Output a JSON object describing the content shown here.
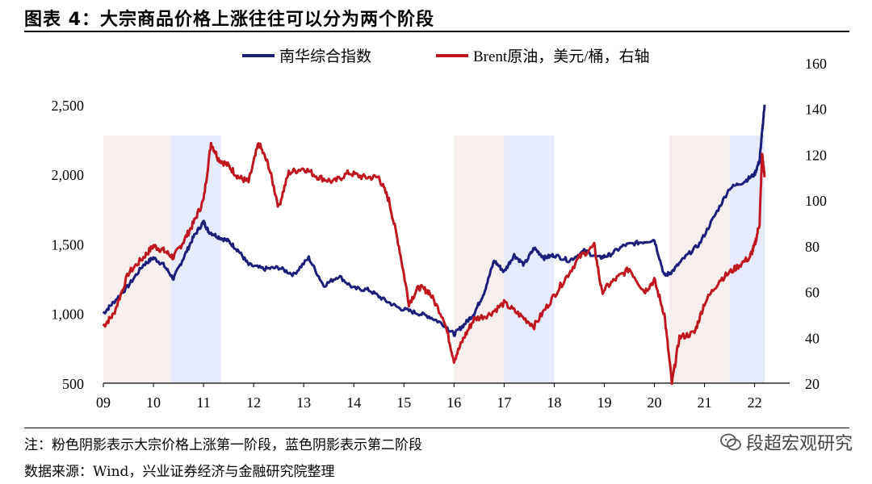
{
  "title": "图表 4：大宗商品价格上涨往往可以分为两个阶段",
  "note": "注：粉色阴影表示大宗价格上涨第一阶段，蓝色阴影表示第二阶段",
  "source": "数据来源：Wind，兴业证券经济与金融研究院整理",
  "watermark": "段超宏观研究",
  "colors": {
    "navy": "#1b1f7a",
    "red": "#c0161f",
    "pink_shade": "#f7eeee",
    "blue_shade": "#e6ebfb"
  },
  "chart_data": {
    "type": "line",
    "x_ticks": [
      "09",
      "10",
      "11",
      "12",
      "13",
      "14",
      "15",
      "16",
      "17",
      "18",
      "19",
      "20",
      "21",
      "22"
    ],
    "x_range": [
      2009.0,
      2022.7
    ],
    "left_axis": {
      "ticks": [
        "500",
        "1,000",
        "1,500",
        "2,000",
        "2,500"
      ],
      "range": [
        500,
        2800
      ]
    },
    "right_axis": {
      "ticks": [
        "20",
        "40",
        "60",
        "80",
        "100",
        "120",
        "140",
        "160"
      ],
      "range": [
        20,
        160
      ]
    },
    "shading": [
      {
        "phase": "first",
        "start": 2009.0,
        "end": 2010.35
      },
      {
        "phase": "second",
        "start": 2010.35,
        "end": 2011.35
      },
      {
        "phase": "first",
        "start": 2016.0,
        "end": 2017.0
      },
      {
        "phase": "second",
        "start": 2017.0,
        "end": 2018.0
      },
      {
        "phase": "first",
        "start": 2020.3,
        "end": 2021.5
      },
      {
        "phase": "second",
        "start": 2021.5,
        "end": 2022.2
      }
    ],
    "series": [
      {
        "name": "南华综合指数",
        "axis": "left",
        "x": [
          2009.0,
          2009.2,
          2009.5,
          2009.8,
          2010.0,
          2010.2,
          2010.4,
          2010.6,
          2010.8,
          2011.0,
          2011.1,
          2011.3,
          2011.5,
          2011.7,
          2011.9,
          2012.2,
          2012.5,
          2012.8,
          2013.1,
          2013.4,
          2013.7,
          2014.0,
          2014.3,
          2014.6,
          2014.9,
          2015.2,
          2015.5,
          2015.8,
          2016.0,
          2016.2,
          2016.4,
          2016.6,
          2016.8,
          2017.0,
          2017.2,
          2017.4,
          2017.6,
          2017.8,
          2018.0,
          2018.3,
          2018.6,
          2018.9,
          2019.1,
          2019.4,
          2019.7,
          2020.0,
          2020.2,
          2020.35,
          2020.6,
          2020.9,
          2021.2,
          2021.5,
          2021.8,
          2022.0,
          2022.1,
          2022.15,
          2022.2
        ],
        "y": [
          1000,
          1080,
          1200,
          1350,
          1400,
          1350,
          1250,
          1400,
          1550,
          1660,
          1590,
          1550,
          1520,
          1450,
          1350,
          1320,
          1330,
          1280,
          1400,
          1200,
          1270,
          1180,
          1170,
          1100,
          1040,
          1010,
          980,
          920,
          850,
          920,
          1000,
          1150,
          1380,
          1300,
          1420,
          1350,
          1470,
          1400,
          1420,
          1380,
          1450,
          1400,
          1420,
          1490,
          1510,
          1530,
          1270,
          1300,
          1400,
          1500,
          1700,
          1900,
          1950,
          2000,
          2100,
          2300,
          2500
        ]
      },
      {
        "name": "Brent原油，美元/桶，右轴",
        "axis": "right",
        "x": [
          2009.0,
          2009.2,
          2009.5,
          2009.8,
          2010.0,
          2010.2,
          2010.4,
          2010.6,
          2010.8,
          2011.0,
          2011.15,
          2011.3,
          2011.5,
          2011.7,
          2011.9,
          2012.1,
          2012.3,
          2012.5,
          2012.7,
          2013.0,
          2013.3,
          2013.6,
          2013.9,
          2014.2,
          2014.5,
          2014.7,
          2014.9,
          2015.1,
          2015.3,
          2015.5,
          2015.8,
          2016.0,
          2016.2,
          2016.4,
          2016.7,
          2017.0,
          2017.3,
          2017.6,
          2017.9,
          2018.2,
          2018.5,
          2018.8,
          2018.95,
          2019.2,
          2019.5,
          2019.8,
          2020.0,
          2020.2,
          2020.35,
          2020.5,
          2020.8,
          2021.0,
          2021.3,
          2021.6,
          2021.9,
          2022.0,
          2022.1,
          2022.15,
          2022.2
        ],
        "y": [
          45,
          50,
          68,
          75,
          80,
          78,
          75,
          82,
          90,
          100,
          125,
          118,
          115,
          110,
          108,
          125,
          115,
          97,
          112,
          114,
          110,
          108,
          112,
          110,
          110,
          100,
          80,
          55,
          62,
          60,
          48,
          30,
          40,
          48,
          50,
          55,
          50,
          45,
          55,
          65,
          75,
          80,
          60,
          65,
          70,
          60,
          65,
          50,
          20,
          40,
          42,
          55,
          65,
          70,
          75,
          80,
          90,
          120,
          110
        ]
      }
    ]
  }
}
